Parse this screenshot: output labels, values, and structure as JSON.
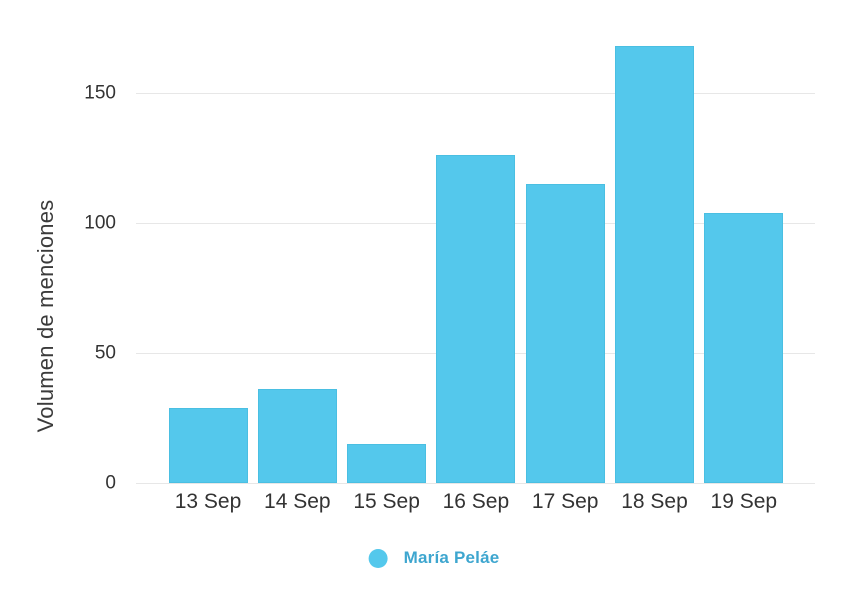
{
  "chart_data": {
    "type": "bar",
    "title": "",
    "ylabel": "Volumen de menciones",
    "xlabel": "",
    "categories": [
      "13 Sep",
      "14 Sep",
      "15 Sep",
      "16 Sep",
      "17 Sep",
      "18 Sep",
      "19 Sep"
    ],
    "values": [
      29,
      36,
      15,
      126,
      115,
      168,
      104
    ],
    "yticks": [
      0,
      50,
      100,
      150
    ],
    "ylim": [
      0,
      185
    ],
    "grid": "horizontal",
    "legend": {
      "position": "bottom",
      "entries": [
        {
          "label": "María Peláe",
          "color": "#54c8ec"
        }
      ]
    }
  },
  "colors": {
    "bar_fill": "#54c8ec",
    "legend_dot": "#54c8ec",
    "legend_text": "#3ea6cf",
    "axis_tick_text": "#333333",
    "axis_title_text": "#3b3b3b",
    "gridline": "#e7e7e7",
    "background": "#ffffff"
  }
}
